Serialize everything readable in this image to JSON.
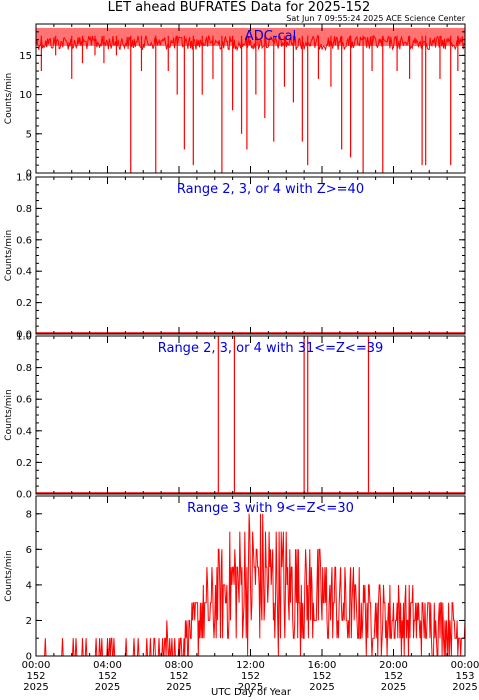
{
  "title": "LET ahead BUFRATES Data for 2025-152",
  "timestamp": "Sat Jun  7 09:55:24 2025 ACE Science Center",
  "xlabel": "UTC Day of Year",
  "colors": {
    "data": "#ff0000",
    "label": "#0000e0",
    "axes": "#000000"
  },
  "x_ticks": [
    {
      "time": "00:00",
      "day": "152",
      "year": "2025"
    },
    {
      "time": "04:00",
      "day": "152",
      "year": "2025"
    },
    {
      "time": "08:00",
      "day": "152",
      "year": "2025"
    },
    {
      "time": "12:00",
      "day": "152",
      "year": "2025"
    },
    {
      "time": "16:00",
      "day": "152",
      "year": "2025"
    },
    {
      "time": "20:00",
      "day": "152",
      "year": "2025"
    },
    {
      "time": "00:00",
      "day": "153",
      "year": "2025"
    }
  ],
  "chart_data": [
    {
      "type": "line",
      "label": "ADC-cal",
      "ylabel": "Counts/min",
      "ylim": [
        0,
        19
      ],
      "yticks": [
        "0",
        "5",
        "10",
        "15"
      ],
      "xlim_hours": [
        0,
        24
      ],
      "baseline": 17.5,
      "dips": [
        {
          "t": 0.3,
          "v": 13
        },
        {
          "t": 1.1,
          "v": 15
        },
        {
          "t": 2.0,
          "v": 12
        },
        {
          "t": 2.6,
          "v": 14
        },
        {
          "t": 3.3,
          "v": 15
        },
        {
          "t": 3.8,
          "v": 14
        },
        {
          "t": 4.5,
          "v": 15
        },
        {
          "t": 5.3,
          "v": 0
        },
        {
          "t": 5.9,
          "v": 13
        },
        {
          "t": 6.7,
          "v": 0
        },
        {
          "t": 7.4,
          "v": 13
        },
        {
          "t": 7.9,
          "v": 10
        },
        {
          "t": 8.3,
          "v": 3
        },
        {
          "t": 8.8,
          "v": 1
        },
        {
          "t": 9.3,
          "v": 10
        },
        {
          "t": 9.9,
          "v": 12
        },
        {
          "t": 10.4,
          "v": 0
        },
        {
          "t": 11.0,
          "v": 8
        },
        {
          "t": 11.5,
          "v": 5
        },
        {
          "t": 11.8,
          "v": 3
        },
        {
          "t": 12.3,
          "v": 10
        },
        {
          "t": 12.8,
          "v": 7
        },
        {
          "t": 13.3,
          "v": 4
        },
        {
          "t": 13.9,
          "v": 11
        },
        {
          "t": 14.4,
          "v": 9
        },
        {
          "t": 14.9,
          "v": 4
        },
        {
          "t": 15.2,
          "v": 1
        },
        {
          "t": 15.8,
          "v": 12
        },
        {
          "t": 16.5,
          "v": 11
        },
        {
          "t": 17.1,
          "v": 3
        },
        {
          "t": 17.6,
          "v": 2
        },
        {
          "t": 18.3,
          "v": 0
        },
        {
          "t": 18.8,
          "v": 13
        },
        {
          "t": 19.4,
          "v": 0
        },
        {
          "t": 20.2,
          "v": 13
        },
        {
          "t": 20.9,
          "v": 12
        },
        {
          "t": 21.6,
          "v": 1
        },
        {
          "t": 21.8,
          "v": 1
        },
        {
          "t": 22.6,
          "v": 12
        },
        {
          "t": 23.2,
          "v": 1
        },
        {
          "t": 23.6,
          "v": 13
        }
      ]
    },
    {
      "type": "line",
      "label": "Range 2, 3, or 4 with Z>=40",
      "ylabel": "Counts/min",
      "ylim": [
        0,
        1
      ],
      "yticks": [
        "0.0",
        "0.2",
        "0.4",
        "0.6",
        "0.8",
        "1.0"
      ],
      "xlim_hours": [
        0,
        24
      ],
      "spikes": []
    },
    {
      "type": "line",
      "label": "Range 2, 3, or 4 with 31<=Z<=39",
      "ylabel": "Counts/min",
      "ylim": [
        0,
        1
      ],
      "yticks": [
        "0.0",
        "0.2",
        "0.4",
        "0.6",
        "0.8",
        "1.0"
      ],
      "xlim_hours": [
        0,
        24
      ],
      "spikes": [
        {
          "t": 10.2,
          "v": 1
        },
        {
          "t": 11.1,
          "v": 1
        },
        {
          "t": 15.0,
          "v": 1
        },
        {
          "t": 15.2,
          "v": 1
        },
        {
          "t": 18.6,
          "v": 1
        }
      ]
    },
    {
      "type": "line",
      "label": "Range 3 with 9<=Z<=30",
      "ylabel": "Counts/min",
      "ylim": [
        0,
        9
      ],
      "yticks": [
        "0",
        "2",
        "4",
        "6",
        "8"
      ],
      "xlim_hours": [
        0,
        24
      ],
      "activity_profile": [
        {
          "t": 0,
          "v": 0.2
        },
        {
          "t": 8,
          "v": 0.4
        },
        {
          "t": 9,
          "v": 2
        },
        {
          "t": 11,
          "v": 4
        },
        {
          "t": 12.5,
          "v": 4.5
        },
        {
          "t": 15,
          "v": 3.5
        },
        {
          "t": 18,
          "v": 2.5
        },
        {
          "t": 22,
          "v": 1.8
        },
        {
          "t": 24,
          "v": 1.5
        }
      ]
    }
  ]
}
